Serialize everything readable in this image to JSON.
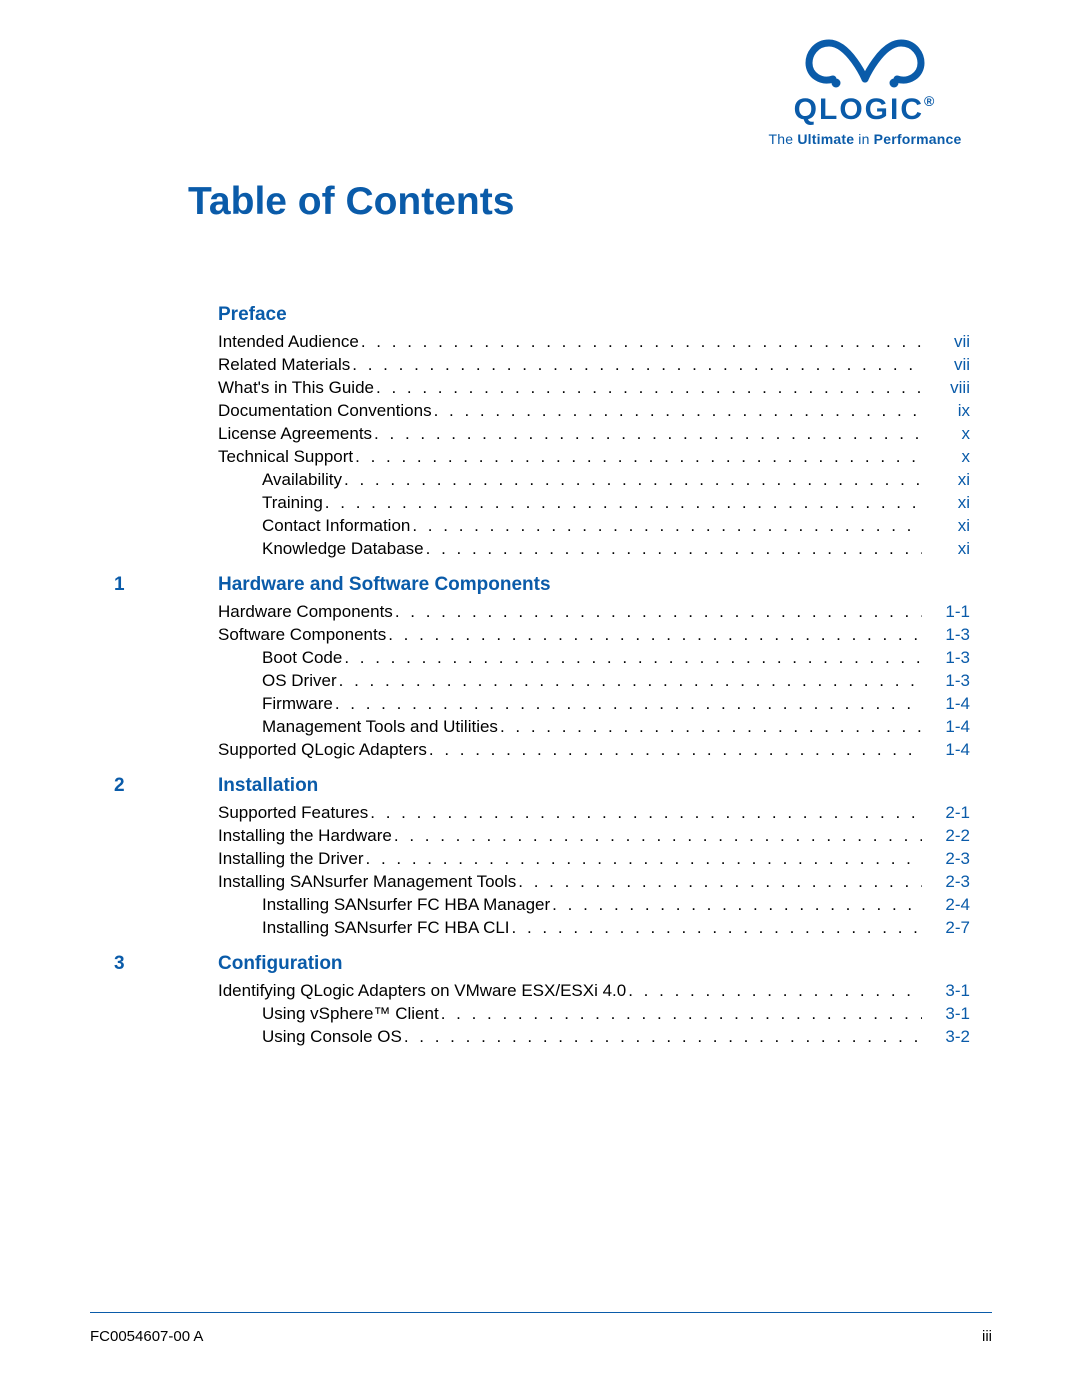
{
  "colors": {
    "brand_blue": "#0a5ba9",
    "text_black": "#000000",
    "page_bg": "#ffffff",
    "rule_color": "#0a5ba9"
  },
  "typography": {
    "title_fontsize_pt": 29,
    "section_fontsize_pt": 14,
    "body_fontsize_pt": 13,
    "font_family": "Arial"
  },
  "logo": {
    "word": "QLOGIC",
    "registered_mark": "®",
    "tagline_prefix": "The ",
    "tagline_bold1": "Ultimate",
    "tagline_mid": " in ",
    "tagline_bold2": "Performance"
  },
  "title": "Table of Contents",
  "sections": [
    {
      "number": "",
      "title": "Preface",
      "entries": [
        {
          "indent": 0,
          "label": "Intended Audience",
          "page": "vii"
        },
        {
          "indent": 0,
          "label": "Related Materials",
          "page": "vii"
        },
        {
          "indent": 0,
          "label": "What's in This Guide",
          "page": "viii"
        },
        {
          "indent": 0,
          "label": "Documentation Conventions",
          "page": "ix"
        },
        {
          "indent": 0,
          "label": "License Agreements",
          "page": "x"
        },
        {
          "indent": 0,
          "label": "Technical Support",
          "page": "x"
        },
        {
          "indent": 1,
          "label": "Availability",
          "page": "xi"
        },
        {
          "indent": 1,
          "label": "Training",
          "page": "xi"
        },
        {
          "indent": 1,
          "label": "Contact Information",
          "page": "xi"
        },
        {
          "indent": 1,
          "label": "Knowledge Database",
          "page": "xi"
        }
      ]
    },
    {
      "number": "1",
      "title": "Hardware and Software Components",
      "entries": [
        {
          "indent": 0,
          "label": "Hardware Components",
          "page": "1-1"
        },
        {
          "indent": 0,
          "label": "Software Components",
          "page": "1-3"
        },
        {
          "indent": 1,
          "label": "Boot Code",
          "page": "1-3"
        },
        {
          "indent": 1,
          "label": "OS Driver",
          "page": "1-3"
        },
        {
          "indent": 1,
          "label": "Firmware",
          "page": "1-4"
        },
        {
          "indent": 1,
          "label": "Management Tools and Utilities",
          "page": "1-4"
        },
        {
          "indent": 0,
          "label": "Supported QLogic Adapters",
          "page": "1-4"
        }
      ]
    },
    {
      "number": "2",
      "title": "Installation",
      "entries": [
        {
          "indent": 0,
          "label": "Supported Features",
          "page": "2-1"
        },
        {
          "indent": 0,
          "label": "Installing the Hardware",
          "page": "2-2"
        },
        {
          "indent": 0,
          "label": "Installing the Driver",
          "page": "2-3"
        },
        {
          "indent": 0,
          "label": "Installing SANsurfer Management Tools",
          "page": "2-3"
        },
        {
          "indent": 1,
          "label": "Installing SANsurfer FC HBA Manager",
          "page": "2-4"
        },
        {
          "indent": 1,
          "label": "Installing SANsurfer FC HBA CLI",
          "page": "2-7"
        }
      ]
    },
    {
      "number": "3",
      "title": "Configuration",
      "entries": [
        {
          "indent": 0,
          "label": "Identifying QLogic Adapters on VMware ESX/ESXi 4.0",
          "page": "3-1"
        },
        {
          "indent": 1,
          "label": "Using vSphere™ Client",
          "page": "3-1"
        },
        {
          "indent": 1,
          "label": "Using Console OS",
          "page": "3-2"
        }
      ]
    }
  ],
  "footer": {
    "doc_number": "FC0054607-00  A",
    "page_number": "iii"
  }
}
